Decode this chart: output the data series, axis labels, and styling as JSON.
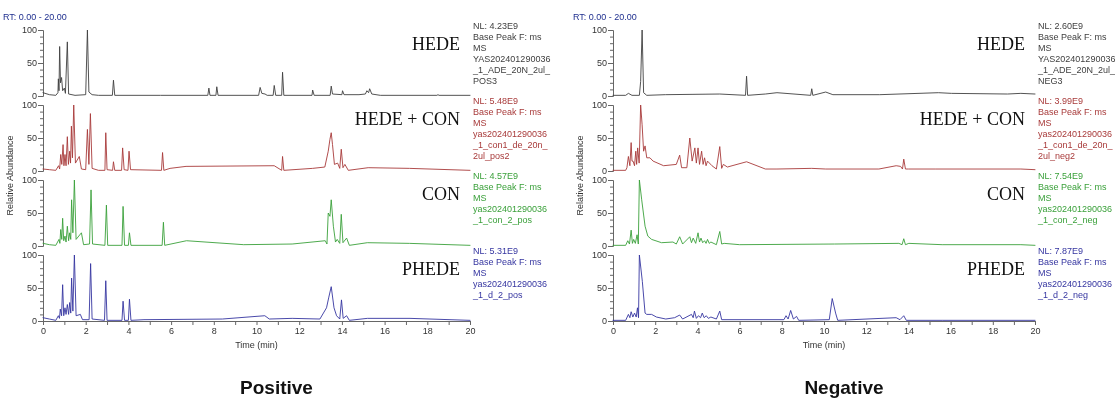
{
  "chart_data": [
    {
      "type": "line",
      "subtitle": "RT: 0.00 - 20.00",
      "xlim": [
        0,
        20
      ],
      "ylim": [
        0,
        100
      ],
      "yticks": [
        0,
        {
          "value": 10,
          "label": null
        },
        {
          "value": 20,
          "label": null
        },
        {
          "value": 30,
          "label": null
        },
        {
          "value": 40,
          "label": null
        },
        50,
        {
          "value": 60,
          "label": null
        },
        {
          "value": 70,
          "label": null
        },
        {
          "value": 80,
          "label": null
        },
        {
          "value": 90,
          "label": null
        },
        100
      ],
      "tick_labels": "y",
      "grid": false,
      "legend": false,
      "marker": "none",
      "line_style": "solid",
      "annotations": [
        "NL: 4.23E9",
        "Base Peak F: ms",
        "MS",
        "YAS202401290036",
        "_1_ADE_20N_2ul_",
        "POS3"
      ],
      "series": [
        {
          "name": "HEDE",
          "color": "#404040",
          "x": [
            0,
            0.3,
            0.6,
            0.7,
            0.72,
            0.75,
            0.78,
            0.82,
            0.87,
            0.92,
            1.0,
            1.05,
            1.14,
            1.2,
            1.5,
            2.0,
            2.08,
            2.15,
            2.3,
            2.6,
            3.25,
            3.3,
            3.36,
            5.5,
            7.72,
            7.77,
            7.82,
            8.1,
            8.14,
            8.2,
            10.1,
            10.17,
            10.25,
            10.4,
            10.5,
            10.78,
            10.83,
            10.9,
            11.18,
            11.22,
            11.28,
            12.6,
            12.63,
            12.7,
            13.45,
            13.5,
            13.56,
            14.0,
            14.03,
            14.1,
            14.8,
            15.1,
            15.17,
            15.25,
            15.3,
            15.4,
            15.8,
            18.45,
            18.5,
            18.55,
            20
          ],
          "values": [
            5,
            2,
            1,
            5,
            26,
            8,
            75,
            20,
            28,
            8,
            12,
            4,
            82,
            3,
            1,
            2,
            100,
            6,
            2,
            1,
            1,
            24,
            1,
            1,
            1,
            12,
            1,
            1,
            14,
            1,
            1,
            13,
            4,
            3,
            1,
            1,
            16,
            1,
            1,
            36,
            1,
            1,
            9,
            1,
            1,
            15,
            3,
            2,
            8,
            2,
            2,
            3,
            8,
            5,
            11,
            3,
            1,
            1,
            2,
            1,
            1
          ]
        }
      ]
    },
    {
      "type": "line",
      "xlim": [
        0,
        20
      ],
      "ylim": [
        0,
        100
      ],
      "yticks": [
        0,
        {
          "value": 10,
          "label": null
        },
        {
          "value": 20,
          "label": null
        },
        {
          "value": 30,
          "label": null
        },
        {
          "value": 40,
          "label": null
        },
        50,
        {
          "value": 60,
          "label": null
        },
        {
          "value": 70,
          "label": null
        },
        {
          "value": 80,
          "label": null
        },
        {
          "value": 90,
          "label": null
        },
        100
      ],
      "tick_labels": "y",
      "grid": false,
      "legend": false,
      "marker": "none",
      "line_style": "solid",
      "ylabel": "Relative Abundance",
      "annotations": [
        "NL: 5.48E9",
        "Base Peak F: ms",
        "MS",
        "yas202401290036",
        "_1_con1_de_20n_",
        "2ul_pos2"
      ],
      "series": [
        {
          "name": "HEDE + CON",
          "color": "#a83a3a",
          "x": [
            0,
            0.3,
            0.6,
            0.73,
            0.78,
            0.83,
            0.88,
            0.94,
            0.98,
            1.03,
            1.08,
            1.14,
            1.19,
            1.25,
            1.29,
            1.33,
            1.38,
            1.44,
            1.52,
            1.7,
            1.8,
            2.0,
            2.08,
            2.15,
            2.22,
            2.3,
            2.6,
            2.9,
            2.94,
            3.0,
            3.26,
            3.3,
            3.36,
            3.68,
            3.73,
            3.8,
            3.98,
            4.03,
            4.1,
            5.55,
            5.6,
            5.66,
            5.95,
            6.7,
            10.83,
            11.18,
            11.22,
            11.28,
            12.63,
            13.2,
            13.36,
            13.44,
            13.5,
            13.56,
            13.65,
            13.8,
            13.9,
            13.97,
            14.05,
            14.14,
            14.3,
            15.23,
            17.16,
            20
          ],
          "values": [
            3,
            2,
            1,
            8,
            3,
            25,
            10,
            40,
            8,
            25,
            8,
            52,
            10,
            30,
            12,
            68,
            20,
            100,
            12,
            22,
            3,
            2,
            63,
            10,
            87,
            4,
            1,
            1,
            58,
            2,
            1,
            14,
            1,
            1,
            35,
            2,
            1,
            30,
            2,
            1,
            28,
            1,
            4,
            7,
            8,
            1,
            22,
            1,
            4,
            6,
            30,
            48,
            58,
            40,
            10,
            12,
            4,
            33,
            5,
            10,
            1,
            5,
            4,
            1
          ]
        }
      ]
    },
    {
      "type": "line",
      "xlim": [
        0,
        20
      ],
      "ylim": [
        0,
        100
      ],
      "yticks": [
        0,
        {
          "value": 10,
          "label": null
        },
        {
          "value": 20,
          "label": null
        },
        {
          "value": 30,
          "label": null
        },
        {
          "value": 40,
          "label": null
        },
        50,
        {
          "value": 60,
          "label": null
        },
        {
          "value": 70,
          "label": null
        },
        {
          "value": 80,
          "label": null
        },
        {
          "value": 90,
          "label": null
        },
        100
      ],
      "tick_labels": "y",
      "grid": false,
      "legend": false,
      "marker": "none",
      "line_style": "solid",
      "annotations": [
        "NL: 4.57E9",
        "Base Peak F: ms",
        "MS",
        "yas202401290036",
        "_1_con_2_pos"
      ],
      "series": [
        {
          "name": "CON",
          "color": "#3aa03a",
          "x": [
            0,
            0.3,
            0.6,
            0.75,
            0.79,
            0.83,
            0.88,
            0.92,
            0.97,
            1.03,
            1.08,
            1.14,
            1.2,
            1.25,
            1.3,
            1.34,
            1.4,
            1.47,
            1.55,
            1.8,
            1.9,
            2.18,
            2.25,
            2.32,
            2.9,
            2.97,
            3.03,
            3.7,
            3.75,
            3.82,
            4.0,
            4.05,
            4.12,
            5.58,
            5.64,
            5.7,
            6.72,
            9.4,
            11.67,
            13.22,
            13.3,
            13.36,
            13.44,
            13.5,
            13.6,
            13.7,
            13.78,
            13.9,
            13.97,
            14.05,
            14.22,
            14.35,
            15.19,
            17.16,
            20
          ],
          "values": [
            4,
            2,
            1,
            10,
            4,
            25,
            10,
            42,
            8,
            15,
            6,
            30,
            8,
            20,
            10,
            70,
            20,
            100,
            10,
            20,
            2,
            3,
            85,
            3,
            1,
            62,
            1,
            1,
            60,
            1,
            1,
            20,
            1,
            1,
            36,
            1,
            8,
            2,
            3,
            8,
            3,
            50,
            45,
            70,
            30,
            6,
            10,
            4,
            48,
            5,
            12,
            1,
            5,
            4,
            1
          ]
        }
      ]
    },
    {
      "type": "line",
      "xlim": [
        0,
        20
      ],
      "ylim": [
        0,
        100
      ],
      "xticks": [
        0,
        {
          "value": 1,
          "label": null
        },
        2,
        {
          "value": 3,
          "label": null
        },
        4,
        {
          "value": 5,
          "label": null
        },
        6,
        {
          "value": 7,
          "label": null
        },
        8,
        {
          "value": 9,
          "label": null
        },
        10,
        {
          "value": 11,
          "label": null
        },
        12,
        {
          "value": 13,
          "label": null
        },
        14,
        {
          "value": 15,
          "label": null
        },
        16,
        {
          "value": 17,
          "label": null
        },
        18,
        {
          "value": 19,
          "label": null
        },
        20
      ],
      "yticks": [
        0,
        {
          "value": 10,
          "label": null
        },
        {
          "value": 20,
          "label": null
        },
        {
          "value": 30,
          "label": null
        },
        {
          "value": 40,
          "label": null
        },
        50,
        {
          "value": 60,
          "label": null
        },
        {
          "value": 70,
          "label": null
        },
        {
          "value": 80,
          "label": null
        },
        {
          "value": 90,
          "label": null
        },
        100
      ],
      "grid": false,
      "legend": false,
      "marker": "none",
      "line_style": "solid",
      "xlabel": "Time (min)",
      "title": "Positive",
      "annotations": [
        "NL: 5.31E9",
        "Base Peak F: ms",
        "MS",
        "yas202401290036",
        "_1_d_2_pos"
      ],
      "series": [
        {
          "name": "PHEDE",
          "color": "#3535a0",
          "x": [
            0,
            0.3,
            0.6,
            0.72,
            0.77,
            0.81,
            0.87,
            0.92,
            0.97,
            1.03,
            1.08,
            1.14,
            1.2,
            1.25,
            1.3,
            1.34,
            1.4,
            1.47,
            1.55,
            1.75,
            1.85,
            2.16,
            2.23,
            2.3,
            2.88,
            2.94,
            3.0,
            3.7,
            3.75,
            3.82,
            4.0,
            4.05,
            4.12,
            4.73,
            8.4,
            10.39,
            10.6,
            11.67,
            12.97,
            13.28,
            13.38,
            13.5,
            13.63,
            13.75,
            13.9,
            13.98,
            14.06,
            14.22,
            14.35,
            15.19,
            17.19,
            20
          ],
          "values": [
            5,
            3,
            1,
            8,
            4,
            18,
            8,
            55,
            8,
            20,
            10,
            25,
            10,
            28,
            12,
            65,
            15,
            100,
            8,
            10,
            2,
            2,
            87,
            3,
            1,
            61,
            1,
            1,
            30,
            1,
            1,
            33,
            1,
            2,
            3,
            8,
            3,
            4,
            3,
            20,
            35,
            52,
            20,
            8,
            3,
            32,
            4,
            8,
            1,
            4,
            4,
            1
          ]
        }
      ]
    },
    {
      "type": "line",
      "subtitle": "RT: 0.00 - 20.00",
      "xlim": [
        0,
        20
      ],
      "ylim": [
        0,
        100
      ],
      "yticks": [
        0,
        {
          "value": 10,
          "label": null
        },
        {
          "value": 20,
          "label": null
        },
        {
          "value": 30,
          "label": null
        },
        {
          "value": 40,
          "label": null
        },
        50,
        {
          "value": 60,
          "label": null
        },
        {
          "value": 70,
          "label": null
        },
        {
          "value": 80,
          "label": null
        },
        {
          "value": 90,
          "label": null
        },
        100
      ],
      "tick_labels": "y",
      "grid": false,
      "legend": false,
      "marker": "none",
      "line_style": "solid",
      "annotations": [
        "NL: 2.60E9",
        "Base Peak F: ms",
        "MS",
        "YAS202401290036",
        "_1_ADE_20N_2ul_",
        "NEG3"
      ],
      "series": [
        {
          "name": "HEDE",
          "color": "#404040",
          "x": [
            0,
            0.6,
            0.73,
            0.9,
            1.25,
            1.31,
            1.38,
            1.45,
            1.6,
            2.48,
            5.06,
            6.28,
            6.33,
            6.38,
            7.22,
            7.77,
            9.37,
            9.42,
            9.47,
            10.08,
            10.42,
            12.64,
            15.42,
            16.05,
            18.7,
            19.33,
            20
          ],
          "values": [
            1,
            1,
            4,
            1,
            1,
            22,
            100,
            5,
            1,
            2,
            3,
            1,
            30,
            1,
            3,
            5,
            1,
            11,
            1,
            6,
            2,
            2,
            5,
            4,
            3,
            4,
            3
          ]
        }
      ]
    },
    {
      "type": "line",
      "xlim": [
        0,
        20
      ],
      "ylim": [
        0,
        100
      ],
      "yticks": [
        0,
        {
          "value": 10,
          "label": null
        },
        {
          "value": 20,
          "label": null
        },
        {
          "value": 30,
          "label": null
        },
        {
          "value": 40,
          "label": null
        },
        50,
        {
          "value": 60,
          "label": null
        },
        {
          "value": 70,
          "label": null
        },
        {
          "value": 80,
          "label": null
        },
        {
          "value": 90,
          "label": null
        },
        100
      ],
      "tick_labels": "y",
      "grid": false,
      "legend": false,
      "marker": "none",
      "line_style": "solid",
      "ylabel": "Relative Abundance",
      "annotations": [
        "NL: 3.99E9",
        "Base Peak F: ms",
        "MS",
        "yas202401290036",
        "_1_con1_de_20n_",
        "2ul_neg2"
      ],
      "series": [
        {
          "name": "HEDE + CON",
          "color": "#a83a3a",
          "x": [
            0,
            0.6,
            0.66,
            0.73,
            0.8,
            0.86,
            0.9,
            0.95,
            1.02,
            1.08,
            1.12,
            1.17,
            1.24,
            1.31,
            1.38,
            1.45,
            1.52,
            1.6,
            1.75,
            1.9,
            2.4,
            3.0,
            3.16,
            3.25,
            3.5,
            3.64,
            3.75,
            3.88,
            3.95,
            4.03,
            4.1,
            4.2,
            4.27,
            4.34,
            4.41,
            4.48,
            4.69,
            4.9,
            5.06,
            5.15,
            5.23,
            5.42,
            6.33,
            7.22,
            7.77,
            9.42,
            10.08,
            12.6,
            13.42,
            13.63,
            13.72,
            13.78,
            13.86,
            14.0,
            15.27,
            19.33,
            20
          ],
          "values": [
            1,
            1,
            5,
            22,
            8,
            43,
            15,
            15,
            8,
            30,
            10,
            35,
            12,
            100,
            70,
            30,
            38,
            20,
            20,
            15,
            8,
            10,
            24,
            5,
            5,
            50,
            15,
            35,
            12,
            35,
            10,
            30,
            10,
            20,
            8,
            15,
            8,
            3,
            37,
            4,
            10,
            6,
            14,
            3,
            3,
            4,
            3,
            3,
            8,
            7,
            3,
            18,
            3,
            3,
            3,
            3,
            2
          ]
        }
      ]
    },
    {
      "type": "line",
      "xlim": [
        0,
        20
      ],
      "ylim": [
        0,
        100
      ],
      "yticks": [
        0,
        {
          "value": 10,
          "label": null
        },
        {
          "value": 20,
          "label": null
        },
        {
          "value": 30,
          "label": null
        },
        {
          "value": 40,
          "label": null
        },
        50,
        {
          "value": 60,
          "label": null
        },
        {
          "value": 70,
          "label": null
        },
        {
          "value": 80,
          "label": null
        },
        {
          "value": 90,
          "label": null
        },
        100
      ],
      "tick_labels": "y",
      "grid": false,
      "legend": false,
      "marker": "none",
      "line_style": "solid",
      "annotations": [
        "NL: 7.54E9",
        "Base Peak F: ms",
        "MS",
        "yas202401290036",
        "_1_con_2_neg"
      ],
      "series": [
        {
          "name": "CON",
          "color": "#3aa03a",
          "x": [
            0,
            0.6,
            0.7,
            0.78,
            0.86,
            0.92,
            0.98,
            1.06,
            1.14,
            1.2,
            1.25,
            1.36,
            1.52,
            1.65,
            1.83,
            2.3,
            2.84,
            3.0,
            3.16,
            3.3,
            3.64,
            3.72,
            3.8,
            3.92,
            4.03,
            4.1,
            4.17,
            4.25,
            4.34,
            4.41,
            4.48,
            4.56,
            4.64,
            4.9,
            5.06,
            5.15,
            5.27,
            6.0,
            10.5,
            13.55,
            13.7,
            13.78,
            13.86,
            14.02,
            15.6,
            19.33,
            20
          ],
          "values": [
            1,
            1,
            8,
            3,
            24,
            4,
            10,
            4,
            17,
            3,
            100,
            70,
            30,
            15,
            10,
            5,
            6,
            3,
            14,
            3,
            14,
            5,
            12,
            4,
            20,
            6,
            12,
            5,
            8,
            4,
            10,
            4,
            6,
            2,
            22,
            3,
            4,
            2,
            3,
            4,
            2,
            11,
            2,
            4,
            2,
            2,
            1
          ]
        }
      ]
    },
    {
      "type": "line",
      "xlim": [
        0,
        20
      ],
      "ylim": [
        0,
        100
      ],
      "xticks": [
        0,
        {
          "value": 1,
          "label": null
        },
        2,
        {
          "value": 3,
          "label": null
        },
        4,
        {
          "value": 5,
          "label": null
        },
        6,
        {
          "value": 7,
          "label": null
        },
        8,
        {
          "value": 9,
          "label": null
        },
        10,
        {
          "value": 11,
          "label": null
        },
        12,
        {
          "value": 13,
          "label": null
        },
        14,
        {
          "value": 15,
          "label": null
        },
        16,
        {
          "value": 17,
          "label": null
        },
        18,
        {
          "value": 19,
          "label": null
        },
        20
      ],
      "yticks": [
        0,
        {
          "value": 10,
          "label": null
        },
        {
          "value": 20,
          "label": null
        },
        {
          "value": 30,
          "label": null
        },
        {
          "value": 40,
          "label": null
        },
        50,
        {
          "value": 60,
          "label": null
        },
        {
          "value": 70,
          "label": null
        },
        {
          "value": 80,
          "label": null
        },
        {
          "value": 90,
          "label": null
        },
        100
      ],
      "grid": false,
      "legend": false,
      "marker": "none",
      "line_style": "solid",
      "xlabel": "Time (min)",
      "title": "Negative",
      "annotations": [
        "NL: 7.87E9",
        "Base Peak F: ms",
        "MS",
        "yas202401290036",
        "_1_d_2_neg"
      ],
      "series": [
        {
          "name": "PHEDE",
          "color": "#3535a0",
          "x": [
            0,
            0.6,
            0.73,
            0.8,
            0.86,
            0.94,
            1.02,
            1.1,
            1.16,
            1.21,
            1.25,
            1.39,
            1.52,
            1.6,
            1.83,
            2.06,
            2.5,
            2.92,
            3.16,
            3.3,
            3.72,
            3.8,
            3.86,
            3.95,
            4.05,
            4.15,
            4.23,
            4.32,
            4.42,
            4.52,
            4.64,
            4.9,
            5.06,
            5.15,
            8.1,
            8.2,
            8.3,
            8.42,
            8.55,
            8.7,
            8.8,
            10.25,
            10.39,
            10.55,
            10.65,
            13.42,
            13.6,
            13.78,
            13.9,
            15.6,
            20
          ],
          "values": [
            1,
            1,
            10,
            5,
            14,
            6,
            12,
            6,
            20,
            5,
            100,
            60,
            12,
            10,
            10,
            6,
            3,
            5,
            9,
            3,
            10,
            5,
            15,
            4,
            8,
            5,
            12,
            5,
            8,
            4,
            6,
            3,
            15,
            2,
            2,
            8,
            3,
            16,
            3,
            7,
            1,
            2,
            34,
            12,
            1,
            5,
            2,
            8,
            1,
            1,
            1
          ]
        }
      ]
    }
  ]
}
